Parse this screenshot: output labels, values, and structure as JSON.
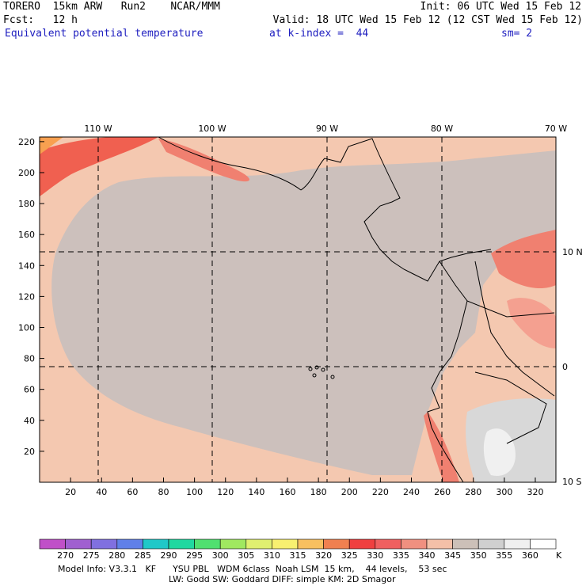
{
  "header": {
    "model": "TORERO  15km ARW   Run2    NCAR/MMM",
    "init": "Init: 06 UTC Wed 15 Feb 12",
    "fcst": "Fcst:   12 h",
    "valid": "Valid: 18 UTC Wed 15 Feb 12 (12 CST Wed 15 Feb 12)",
    "field": "Equivalent potential temperature",
    "level": "at k-index =  44",
    "smoothing": "sm= 2"
  },
  "map": {
    "lon_labels": [
      "110 W",
      "100 W",
      "90 W",
      "80 W",
      "70 W"
    ],
    "lat_labels": [
      "10 N",
      "0",
      "10 S"
    ],
    "x_ticks": [
      "20",
      "40",
      "60",
      "80",
      "100",
      "120",
      "140",
      "160",
      "180",
      "200",
      "220",
      "240",
      "260",
      "280",
      "300",
      "320"
    ],
    "y_ticks": [
      "220",
      "200",
      "180",
      "160",
      "140",
      "120",
      "100",
      "80",
      "60",
      "40",
      "20"
    ]
  },
  "colorbar": {
    "levels": [
      "270",
      "275",
      "280",
      "285",
      "290",
      "295",
      "300",
      "305",
      "310",
      "315",
      "320",
      "325",
      "330",
      "335",
      "340",
      "345",
      "350",
      "355",
      "360"
    ],
    "unit": "K",
    "colors": [
      "#c050c8",
      "#a060d0",
      "#8070e0",
      "#6080e8",
      "#20c8c8",
      "#20d8a0",
      "#50e070",
      "#a0e860",
      "#e0f070",
      "#f8f070",
      "#f8c060",
      "#f08050",
      "#f04040",
      "#f06060",
      "#f09080",
      "#f4c0a8",
      "#ccc0b8",
      "#d0d0d0",
      "#f0f0f0",
      "#ffffff"
    ]
  },
  "footer": {
    "line1": "Model Info: V3.3.1   KF      YSU PBL   WDM 6class  Noah LSM  15 km,    44 levels,    53 sec",
    "line2": "LW: Godd SW: Goddard DIFF: simple KM: 2D Smagor"
  }
}
